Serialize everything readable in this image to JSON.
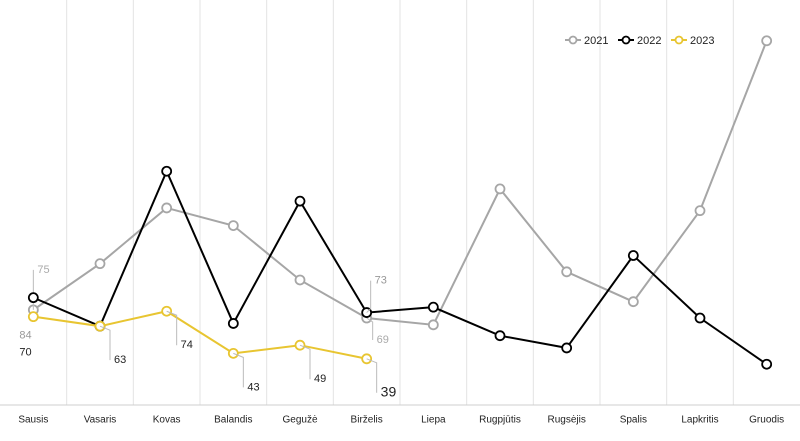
{
  "chart_data": {
    "type": "line",
    "categories": [
      "Sausis",
      "Vasaris",
      "Kovas",
      "Balandis",
      "Gegužė",
      "Birželis",
      "Liepa",
      "Rugpjūtis",
      "Rugsėjis",
      "Spalis",
      "Lapkritis",
      "Gruodis"
    ],
    "ylim": [
      5,
      303
    ],
    "grid": true,
    "legend": "top-right",
    "series": [
      {
        "name": "2021",
        "color": "#a6a6a6",
        "values": [
          75,
          109,
          150,
          137,
          97,
          69,
          64,
          164,
          103,
          81,
          148,
          273
        ],
        "value_labels": [
          "75",
          null,
          null,
          null,
          null,
          "69",
          null,
          null,
          null,
          null,
          null,
          null
        ]
      },
      {
        "name": "2022",
        "color": "#000000",
        "values": [
          84,
          63,
          177,
          65,
          155,
          73,
          77,
          56,
          47,
          115,
          69,
          35
        ],
        "value_labels": [
          "84",
          null,
          null,
          null,
          null,
          "73",
          null,
          null,
          null,
          null,
          null,
          null
        ]
      },
      {
        "name": "2023",
        "color": "#e8c531",
        "values": [
          70,
          63,
          74,
          43,
          49,
          39,
          null,
          null,
          null,
          null,
          null,
          null
        ],
        "value_labels": [
          "70",
          "63",
          "74",
          "43",
          "49",
          "39",
          null,
          null,
          null,
          null,
          null,
          null
        ]
      }
    ]
  }
}
